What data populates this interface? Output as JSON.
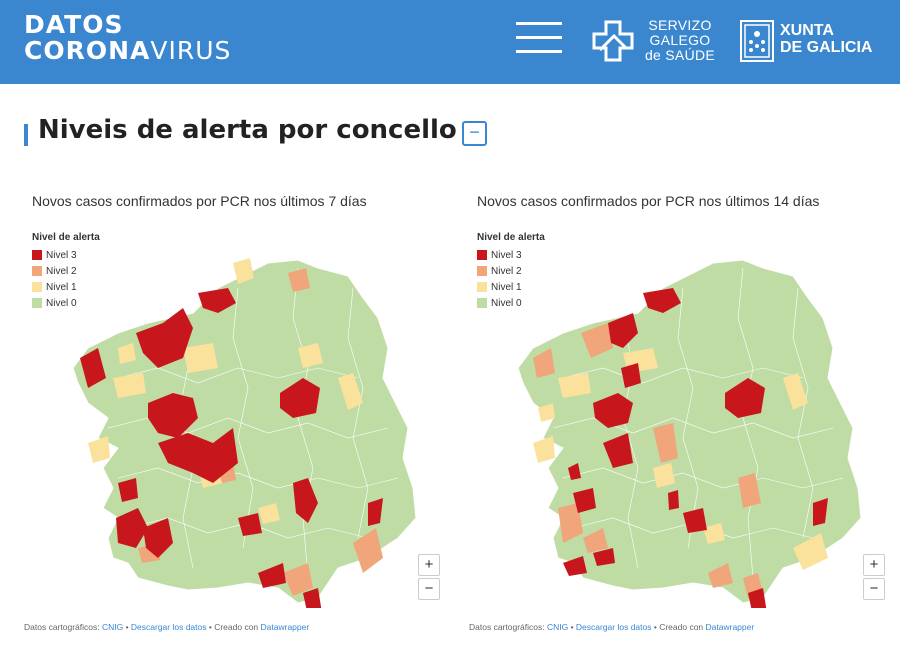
{
  "header": {
    "brand_line1": "DATOS",
    "brand_line2_bold": "CORONA",
    "brand_line2_light": "VIRUS",
    "sgs_line1": "SERVIZO",
    "sgs_line2": "GALEGO",
    "sgs_line3": "de SAÚDE",
    "xunta_line1": "XUNTA",
    "xunta_line2": "DE GALICIA",
    "menu_icon": "hamburger-menu-icon"
  },
  "section": {
    "title": "Niveis de alerta por concello",
    "collapse_label": "−"
  },
  "colors": {
    "nivel3": "#c8161d",
    "nivel2": "#f0a57a",
    "nivel1": "#fbe29c",
    "nivel0": "#bfdca5",
    "accent": "#3a87d0"
  },
  "legend": {
    "title": "Nivel de alerta",
    "items": [
      "Nivel 3",
      "Nivel 2",
      "Nivel 1",
      "Nivel 0"
    ]
  },
  "maps": [
    {
      "title": "Novos casos confirmados por PCR nos últimos 7 días",
      "zoom_in": "+",
      "zoom_out": "−"
    },
    {
      "title": "Novos casos confirmados por PCR nos últimos 14 días",
      "zoom_in": "+",
      "zoom_out": "−"
    }
  ],
  "credit": {
    "prefix": "Datos cartográficos: ",
    "source": "CNIG",
    "sep1": " • ",
    "download": "Descargar los datos",
    "sep2": " • Creado con ",
    "tool": "Datawrapper"
  }
}
